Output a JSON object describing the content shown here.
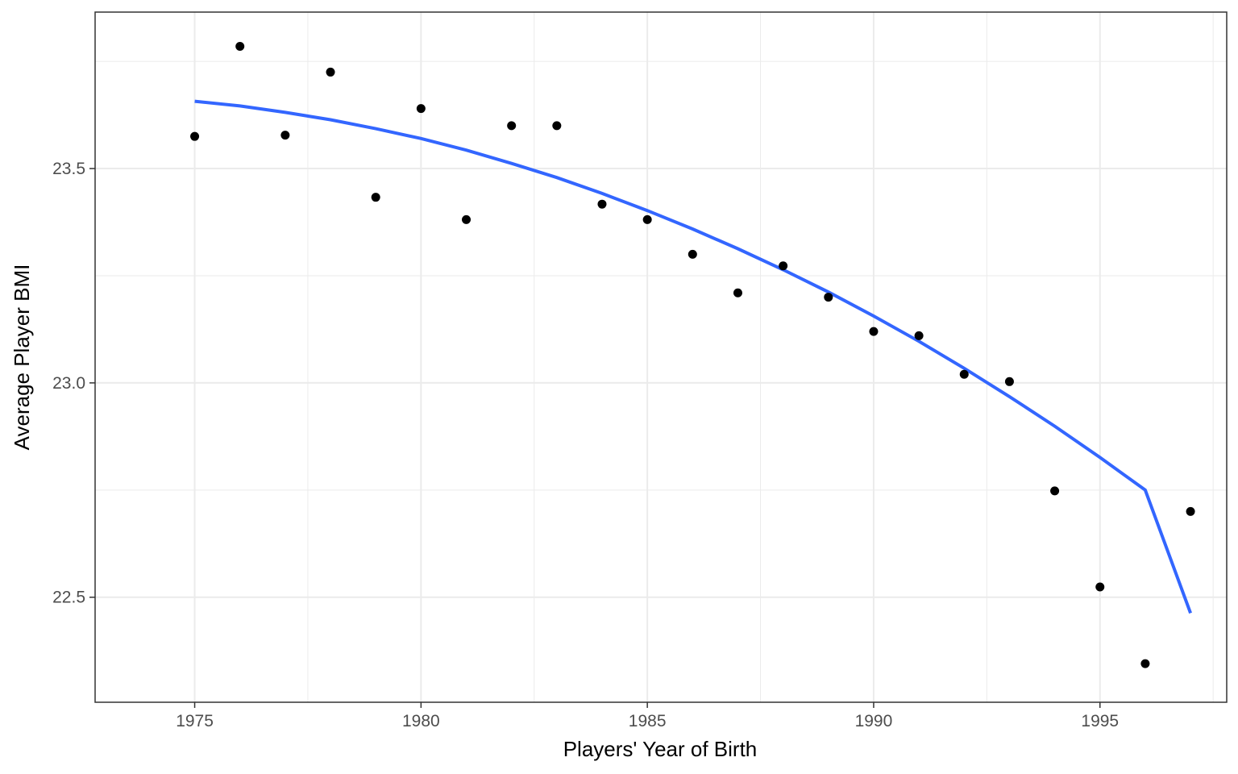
{
  "chart_data": {
    "type": "scatter",
    "xlabel": "Players' Year of Birth",
    "ylabel": "Average Player BMI",
    "xlim": [
      1972.8,
      1997.8
    ],
    "ylim": [
      22.255,
      23.865
    ],
    "x_ticks": [
      1975,
      1980,
      1985,
      1990,
      1995
    ],
    "x_tick_labels": [
      "1975",
      "1980",
      "1985",
      "1990",
      "1995"
    ],
    "y_ticks": [
      22.5,
      23.0,
      23.5
    ],
    "y_tick_labels": [
      "22.5",
      "23.0",
      "23.5"
    ],
    "grid": true,
    "legend": "none",
    "colors": {
      "points": "#000000",
      "trend": "#3366ff",
      "grid": "#ebebeb",
      "panel_border": "#333333"
    },
    "series": [
      {
        "type": "scatter",
        "x": [
          1975,
          1976,
          1977,
          1978,
          1979,
          1980,
          1981,
          1982,
          1983,
          1984,
          1985,
          1986,
          1987,
          1988,
          1989,
          1990,
          1991,
          1992,
          1993,
          1994,
          1995,
          1996,
          1997
        ],
        "y": [
          23.575,
          23.785,
          23.578,
          23.725,
          23.433,
          23.64,
          23.381,
          23.6,
          23.6,
          23.417,
          23.381,
          23.3,
          23.21,
          23.273,
          23.2,
          23.12,
          23.11,
          23.02,
          23.003,
          22.748,
          22.524,
          22.345,
          22.7
        ]
      },
      {
        "type": "line",
        "x": [
          1975,
          1976,
          1977,
          1978,
          1979,
          1980,
          1981,
          1982,
          1983,
          1984,
          1985,
          1986,
          1987,
          1988,
          1989,
          1990,
          1991,
          1992,
          1993,
          1994,
          1995,
          1996,
          1997
        ],
        "y": [
          23.657,
          23.646,
          23.631,
          23.614,
          23.593,
          23.57,
          23.543,
          23.512,
          23.479,
          23.442,
          23.402,
          23.359,
          23.313,
          23.264,
          23.212,
          23.156,
          23.097,
          23.034,
          22.968,
          22.899,
          22.826,
          22.75,
          22.463
        ]
      }
    ]
  }
}
